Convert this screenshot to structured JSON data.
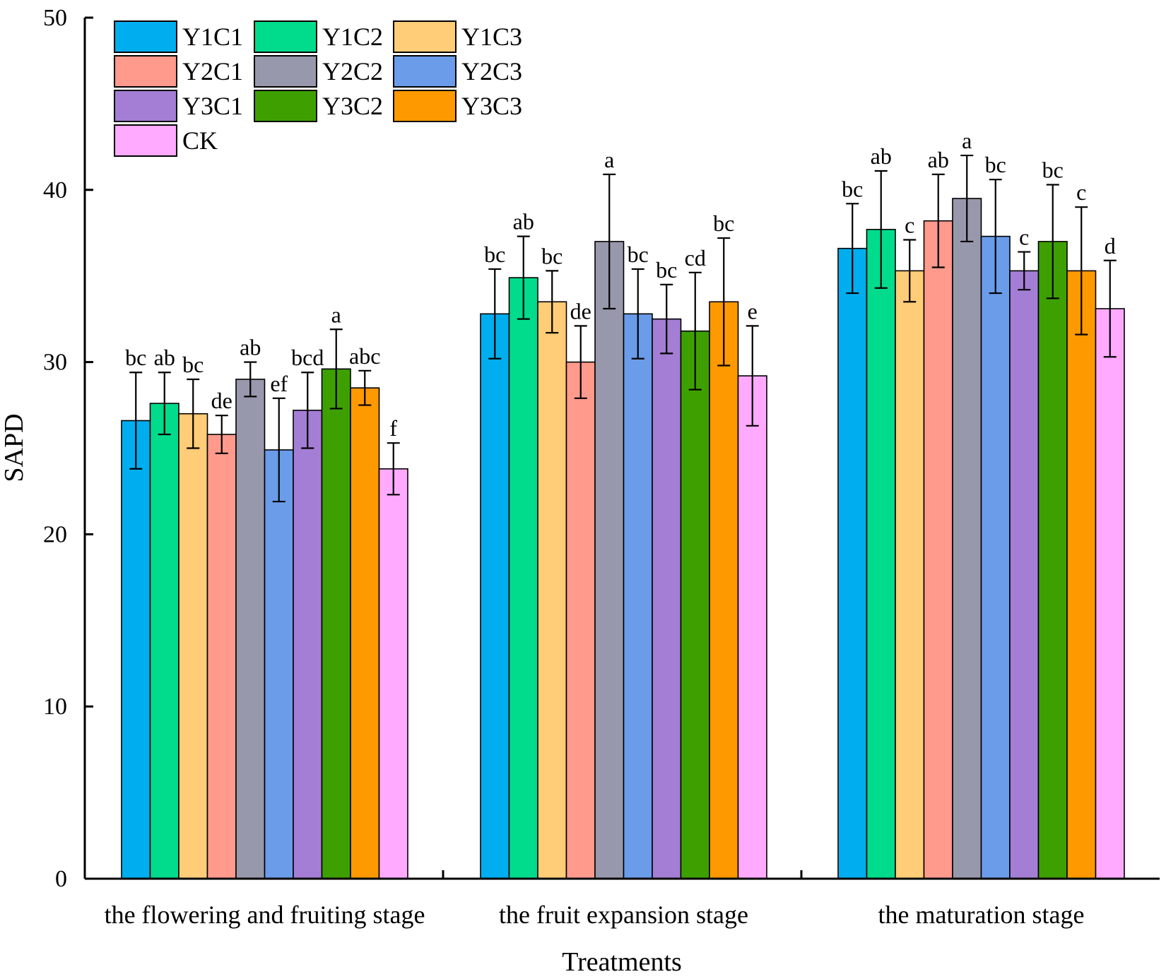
{
  "chart_data": {
    "type": "bar",
    "title": "",
    "xlabel": "Treatments",
    "ylabel": "SAPD",
    "ylim": [
      0,
      50
    ],
    "yticks": [
      0,
      10,
      20,
      30,
      40,
      50
    ],
    "grid": false,
    "legend_position": "top-left",
    "categories": [
      "the flowering and fruiting stage",
      "the fruit expansion stage",
      "the maturation stage"
    ],
    "series": [
      {
        "name": "Y1C1",
        "color": "#00AEEF",
        "values": [
          26.6,
          32.8,
          36.6
        ],
        "errors": [
          2.8,
          2.6,
          2.6
        ],
        "letters": [
          "bc",
          "bc",
          "bc"
        ]
      },
      {
        "name": "Y1C2",
        "color": "#00DC8C",
        "values": [
          27.6,
          34.9,
          37.7
        ],
        "errors": [
          1.8,
          2.4,
          3.4
        ],
        "letters": [
          "ab",
          "ab",
          "ab"
        ]
      },
      {
        "name": "Y1C3",
        "color": "#FFCC77",
        "values": [
          27.0,
          33.5,
          35.3
        ],
        "errors": [
          2.0,
          1.8,
          1.8
        ],
        "letters": [
          "bc",
          "bc",
          "c"
        ]
      },
      {
        "name": "Y2C1",
        "color": "#FF9A8C",
        "values": [
          25.8,
          30.0,
          38.2
        ],
        "errors": [
          1.1,
          2.1,
          2.7
        ],
        "letters": [
          "de",
          "de",
          "ab"
        ]
      },
      {
        "name": "Y2C2",
        "color": "#9898AC",
        "values": [
          29.0,
          37.0,
          39.5
        ],
        "errors": [
          1.0,
          3.9,
          2.5
        ],
        "letters": [
          "ab",
          "a",
          "a"
        ]
      },
      {
        "name": "Y2C3",
        "color": "#6A9CEA",
        "values": [
          24.9,
          32.8,
          37.3
        ],
        "errors": [
          3.0,
          2.6,
          3.3
        ],
        "letters": [
          "ef",
          "bc",
          "bc"
        ]
      },
      {
        "name": "Y3C1",
        "color": "#A47ED4",
        "values": [
          27.2,
          32.5,
          35.3
        ],
        "errors": [
          2.2,
          2.0,
          1.1
        ],
        "letters": [
          "bcd",
          "bc",
          "c"
        ]
      },
      {
        "name": "Y3C2",
        "color": "#3EA000",
        "values": [
          29.6,
          31.8,
          37.0
        ],
        "errors": [
          2.3,
          3.4,
          3.3
        ],
        "letters": [
          "a",
          "cd",
          "bc"
        ]
      },
      {
        "name": "Y3C3",
        "color": "#FF9900",
        "values": [
          28.5,
          33.5,
          35.3
        ],
        "errors": [
          1.0,
          3.7,
          3.7
        ],
        "letters": [
          "abc",
          "bc",
          "c"
        ]
      },
      {
        "name": "CK",
        "color": "#FFAAFF",
        "values": [
          23.8,
          29.2,
          33.1
        ],
        "errors": [
          1.5,
          2.9,
          2.8
        ],
        "letters": [
          "f",
          "e",
          "d"
        ]
      }
    ]
  }
}
